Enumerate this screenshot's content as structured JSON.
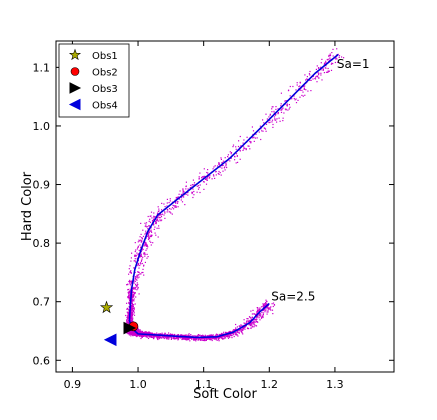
{
  "chart_data": {
    "type": "scatter",
    "xlabel": "Soft Color",
    "ylabel": "Hard Color",
    "xlim": [
      0.875,
      1.39
    ],
    "ylim": [
      0.58,
      1.145
    ],
    "xticks": [
      0.9,
      1.0,
      1.1,
      1.2,
      1.3
    ],
    "xtick_labels": [
      "0.9",
      "1.0",
      "1.1",
      "1.2",
      "1.3"
    ],
    "yticks": [
      0.6,
      0.7,
      0.8,
      0.9,
      1.0,
      1.1
    ],
    "ytick_labels": [
      "0.6",
      "0.7",
      "0.8",
      "0.9",
      "1.0",
      "1.1"
    ],
    "grid": false,
    "legend_position": "top-left",
    "track": {
      "color": "#0000dd",
      "points": [
        [
          1.305,
          1.122
        ],
        [
          1.27,
          1.09
        ],
        [
          1.23,
          1.045
        ],
        [
          1.19,
          1.0
        ],
        [
          1.14,
          0.945
        ],
        [
          1.1,
          0.91
        ],
        [
          1.06,
          0.875
        ],
        [
          1.03,
          0.848
        ],
        [
          1.015,
          0.82
        ],
        [
          1.005,
          0.79
        ],
        [
          0.995,
          0.755
        ],
        [
          0.99,
          0.72
        ],
        [
          0.988,
          0.69
        ],
        [
          0.987,
          0.668
        ],
        [
          0.99,
          0.655
        ],
        [
          1.0,
          0.645
        ],
        [
          1.03,
          0.643
        ],
        [
          1.06,
          0.641
        ],
        [
          1.09,
          0.639
        ],
        [
          1.12,
          0.64
        ],
        [
          1.145,
          0.648
        ],
        [
          1.17,
          0.664
        ],
        [
          1.185,
          0.682
        ],
        [
          1.2,
          0.697
        ]
      ]
    },
    "scatter_color": "#cc00cc",
    "observations": [
      {
        "name": "Obs1",
        "marker": "star",
        "color": "#aaaa00",
        "x": 0.952,
        "y": 0.69
      },
      {
        "name": "Obs2",
        "marker": "circle",
        "color": "#ff0000",
        "x": 0.993,
        "y": 0.658
      },
      {
        "name": "Obs3",
        "marker": "triangle-right",
        "color": "#000000",
        "x": 0.987,
        "y": 0.655
      },
      {
        "name": "Obs4",
        "marker": "triangle-left",
        "color": "#0000dd",
        "x": 0.958,
        "y": 0.635
      }
    ],
    "annotations": [
      {
        "text": "Sa=1",
        "x": 1.303,
        "y": 1.099
      },
      {
        "text": "Sa=2.5",
        "x": 1.203,
        "y": 0.702
      }
    ]
  }
}
